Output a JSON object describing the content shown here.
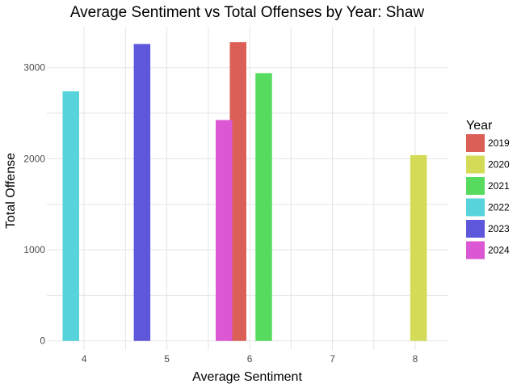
{
  "chart_data": {
    "type": "bar",
    "title": "Average Sentiment vs Total Offenses by Year: Shaw",
    "xlabel": "Average Sentiment",
    "ylabel": "Total Offense",
    "xlim": [
      3.55,
      8.4
    ],
    "ylim": [
      -100,
      3450
    ],
    "xticks": [
      4,
      5,
      6,
      7,
      8
    ],
    "yticks": [
      0,
      1000,
      2000,
      3000
    ],
    "grid": true,
    "legend": {
      "title": "Year",
      "position": "right"
    },
    "bar_width": 0.2,
    "series": [
      {
        "name": "2019",
        "color": "#db5f57",
        "points": [
          {
            "x": 5.86,
            "y": 3280
          }
        ]
      },
      {
        "name": "2020",
        "color": "#d3db57",
        "points": [
          {
            "x": 8.04,
            "y": 2040
          }
        ]
      },
      {
        "name": "2021",
        "color": "#57db5f",
        "points": [
          {
            "x": 6.17,
            "y": 2940
          }
        ]
      },
      {
        "name": "2022",
        "color": "#57d3db",
        "points": [
          {
            "x": 3.84,
            "y": 2740
          }
        ]
      },
      {
        "name": "2023",
        "color": "#5f57db",
        "points": [
          {
            "x": 4.7,
            "y": 3260
          }
        ]
      },
      {
        "name": "2024",
        "color": "#db57d3",
        "points": [
          {
            "x": 5.69,
            "y": 2425
          }
        ]
      }
    ]
  }
}
